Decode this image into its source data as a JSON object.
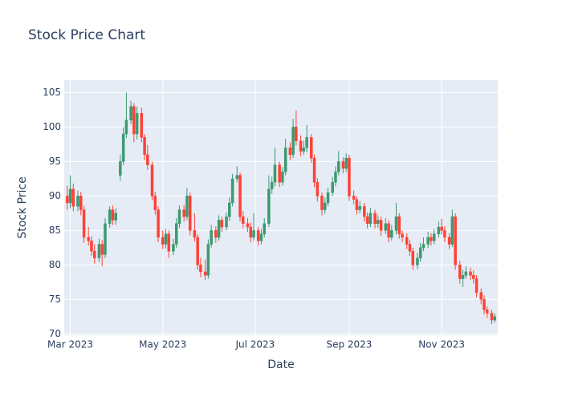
{
  "chart_data": {
    "type": "candlestick",
    "title": "Stock Price Chart",
    "x_label": "Date",
    "y_label": "Stock Price",
    "increasing_color": "#3D9970",
    "decreasing_color": "#FF4136",
    "grid": true,
    "xlim": [
      "2023-02-25",
      "2023-12-08"
    ],
    "xticks": [
      {
        "value": "2023-03-01",
        "label": "Mar 2023"
      },
      {
        "value": "2023-05-01",
        "label": "May 2023"
      },
      {
        "value": "2023-07-01",
        "label": "Jul 2023"
      },
      {
        "value": "2023-09-01",
        "label": "Sep 2023"
      },
      {
        "value": "2023-11-01",
        "label": "Nov 2023"
      }
    ],
    "ylim": [
      69.8,
      106.8
    ],
    "yticks": [
      70,
      75,
      80,
      85,
      90,
      95,
      100,
      105
    ],
    "x": [
      "2023-02-27",
      "2023-03-01",
      "2023-03-03",
      "2023-03-06",
      "2023-03-08",
      "2023-03-10",
      "2023-03-13",
      "2023-03-15",
      "2023-03-17",
      "2023-03-20",
      "2023-03-22",
      "2023-03-24",
      "2023-03-27",
      "2023-03-29",
      "2023-03-31",
      "2023-04-03",
      "2023-04-05",
      "2023-04-07",
      "2023-04-10",
      "2023-04-12",
      "2023-04-14",
      "2023-04-17",
      "2023-04-19",
      "2023-04-21",
      "2023-04-24",
      "2023-04-26",
      "2023-04-28",
      "2023-05-01",
      "2023-05-03",
      "2023-05-05",
      "2023-05-08",
      "2023-05-10",
      "2023-05-12",
      "2023-05-15",
      "2023-05-17",
      "2023-05-19",
      "2023-05-22",
      "2023-05-24",
      "2023-05-26",
      "2023-05-29",
      "2023-05-31",
      "2023-06-02",
      "2023-06-05",
      "2023-06-07",
      "2023-06-09",
      "2023-06-12",
      "2023-06-14",
      "2023-06-16",
      "2023-06-19",
      "2023-06-21",
      "2023-06-23",
      "2023-06-26",
      "2023-06-28",
      "2023-06-30",
      "2023-07-03",
      "2023-07-05",
      "2023-07-07",
      "2023-07-10",
      "2023-07-12",
      "2023-07-14",
      "2023-07-17",
      "2023-07-19",
      "2023-07-21",
      "2023-07-24",
      "2023-07-26",
      "2023-07-28",
      "2023-07-31",
      "2023-08-02",
      "2023-08-04",
      "2023-08-07",
      "2023-08-09",
      "2023-08-11",
      "2023-08-14",
      "2023-08-16",
      "2023-08-18",
      "2023-08-21",
      "2023-08-23",
      "2023-08-25",
      "2023-08-28",
      "2023-08-30",
      "2023-09-01",
      "2023-09-04",
      "2023-09-06",
      "2023-09-08",
      "2023-09-11",
      "2023-09-13",
      "2023-09-15",
      "2023-09-18",
      "2023-09-20",
      "2023-09-22",
      "2023-09-25",
      "2023-09-27",
      "2023-09-29",
      "2023-10-02",
      "2023-10-04",
      "2023-10-06",
      "2023-10-09",
      "2023-10-11",
      "2023-10-13",
      "2023-10-16",
      "2023-10-18",
      "2023-10-20",
      "2023-10-23",
      "2023-10-25",
      "2023-10-27",
      "2023-10-30",
      "2023-11-01",
      "2023-11-03",
      "2023-11-06",
      "2023-11-08",
      "2023-11-10",
      "2023-11-13",
      "2023-11-15",
      "2023-11-17",
      "2023-11-20",
      "2023-11-22",
      "2023-11-24",
      "2023-11-27",
      "2023-11-29",
      "2023-12-01",
      "2023-12-04",
      "2023-12-06"
    ],
    "open": [
      90,
      89,
      91,
      88.5,
      90,
      88,
      84,
      83.5,
      82,
      81,
      83,
      81.5,
      86,
      88,
      86.5,
      93,
      95,
      99,
      101,
      103,
      99,
      102,
      98.5,
      96,
      94.5,
      90,
      88,
      84,
      83,
      84.5,
      82,
      83,
      86,
      88,
      87,
      90,
      85,
      84,
      80,
      79,
      78.5,
      83,
      85,
      84,
      86.5,
      85.5,
      87,
      89,
      92.5,
      93,
      87,
      86,
      85.5,
      84,
      85,
      83.5,
      84.5,
      86,
      91,
      92,
      94.5,
      92,
      93.5,
      97,
      96,
      100,
      98,
      96.5,
      97,
      98.5,
      95.5,
      92,
      90,
      88,
      89,
      90.5,
      92,
      93.5,
      95,
      94,
      95.5,
      90,
      89.5,
      88,
      88.5,
      87,
      86,
      87.5,
      86,
      86.5,
      85,
      86,
      84,
      85,
      87,
      84.5,
      84,
      83,
      82,
      80,
      81,
      82.5,
      83,
      84,
      83.5,
      84.5,
      85.5,
      85,
      84,
      83,
      87,
      80,
      78,
      78.5,
      79,
      78.5,
      78,
      76,
      75,
      73.5,
      73,
      72
    ],
    "high": [
      91.5,
      93,
      91.8,
      90.8,
      90.6,
      88.6,
      85.5,
      84.2,
      83,
      83.8,
      83.6,
      86.8,
      88.5,
      88.6,
      88.2,
      96,
      100,
      105,
      103.8,
      103.5,
      103,
      102.8,
      99,
      97.4,
      95,
      90.6,
      88.5,
      85,
      85.2,
      85,
      83.8,
      86.8,
      88.6,
      88.7,
      91.2,
      90.5,
      87.5,
      84.5,
      81,
      80.8,
      83.7,
      85.8,
      85.6,
      87.2,
      87,
      87.6,
      89.8,
      93.2,
      94.3,
      93.4,
      87.8,
      86.8,
      86.2,
      87.5,
      85.5,
      85.2,
      86.8,
      93,
      92.8,
      97,
      95,
      94.2,
      98.3,
      97.8,
      101.2,
      102.4,
      98.8,
      98,
      100.3,
      99,
      96,
      92.6,
      90.5,
      89.8,
      91.2,
      92.8,
      94.3,
      96.5,
      95.6,
      96.2,
      96,
      90.8,
      90,
      89.3,
      89,
      87.6,
      88.3,
      88,
      87.2,
      87,
      86.8,
      86.5,
      85.8,
      89,
      87.5,
      85,
      84.6,
      83.6,
      82.5,
      81.8,
      83.2,
      84,
      84.8,
      84.6,
      85.2,
      86.3,
      86.7,
      85.6,
      84.6,
      88,
      87.5,
      80.6,
      79.3,
      79.8,
      79.6,
      79.2,
      78.5,
      76.6,
      75.6,
      74,
      73.5,
      73
    ],
    "low": [
      88,
      88.2,
      87.8,
      87.8,
      87.2,
      83.2,
      82.8,
      81.3,
      80.2,
      80.4,
      79.8,
      81,
      85.4,
      85.8,
      85.8,
      92.2,
      94.5,
      98.4,
      100.4,
      97.8,
      98.2,
      97.8,
      95.2,
      93.8,
      89.4,
      87.3,
      83.3,
      82.3,
      82.4,
      81,
      81.4,
      82.5,
      85.4,
      86.3,
      86.5,
      84.3,
      83.4,
      79.3,
      78.2,
      77.8,
      78,
      82.5,
      83.2,
      83.5,
      84.8,
      85,
      86.4,
      88.5,
      92,
      86.3,
      85.3,
      84.8,
      83.3,
      83.5,
      82.8,
      83,
      84,
      85.5,
      90.3,
      91.4,
      91.3,
      91.5,
      93,
      95.2,
      95.5,
      97.3,
      95.8,
      96,
      96.4,
      94.8,
      91.3,
      89.2,
      87.2,
      87.4,
      88.5,
      90,
      91.4,
      93,
      93.3,
      93.5,
      89.3,
      88.8,
      87.3,
      87.5,
      86.3,
      85.3,
      85.5,
      85.3,
      85.4,
      84.2,
      84.5,
      83.3,
      83.5,
      84.4,
      83.8,
      83.3,
      82.3,
      81.3,
      79.3,
      79.4,
      80.5,
      82,
      82.5,
      82.8,
      83,
      84,
      84.4,
      83.3,
      82.3,
      82.6,
      79.3,
      77.3,
      76.8,
      78,
      77.8,
      77.3,
      75.3,
      74.3,
      72.8,
      72.3,
      71.4,
      71.6
    ],
    "close": [
      89,
      91,
      88.5,
      90,
      88,
      84,
      83.5,
      82,
      81,
      83,
      81.5,
      86,
      88,
      86.5,
      87.5,
      95,
      99,
      101,
      103,
      99,
      102,
      98.5,
      96,
      94.5,
      90,
      88,
      84,
      83,
      84.5,
      82,
      83,
      86,
      88,
      87,
      90,
      85,
      84,
      80,
      79,
      78.5,
      83,
      85,
      84,
      86.5,
      85.5,
      87,
      89,
      92.5,
      93,
      87,
      86,
      85.5,
      84,
      85,
      83.5,
      84.5,
      86,
      91,
      92,
      94.5,
      92,
      93.5,
      97,
      96,
      100,
      98,
      96.5,
      97,
      98.5,
      95.5,
      92,
      90,
      88,
      89,
      90.5,
      92,
      93.5,
      95,
      94,
      95.5,
      90,
      89.5,
      88,
      88.5,
      87,
      86,
      87.5,
      86,
      86.5,
      85,
      86,
      84,
      85,
      87,
      84.5,
      84,
      83,
      82,
      80,
      81,
      82.5,
      83,
      84,
      83.5,
      84.5,
      85.5,
      85,
      84,
      83,
      87,
      80,
      78,
      78.5,
      79,
      78.5,
      78,
      76,
      75,
      73.5,
      73,
      72,
      72.5
    ]
  }
}
